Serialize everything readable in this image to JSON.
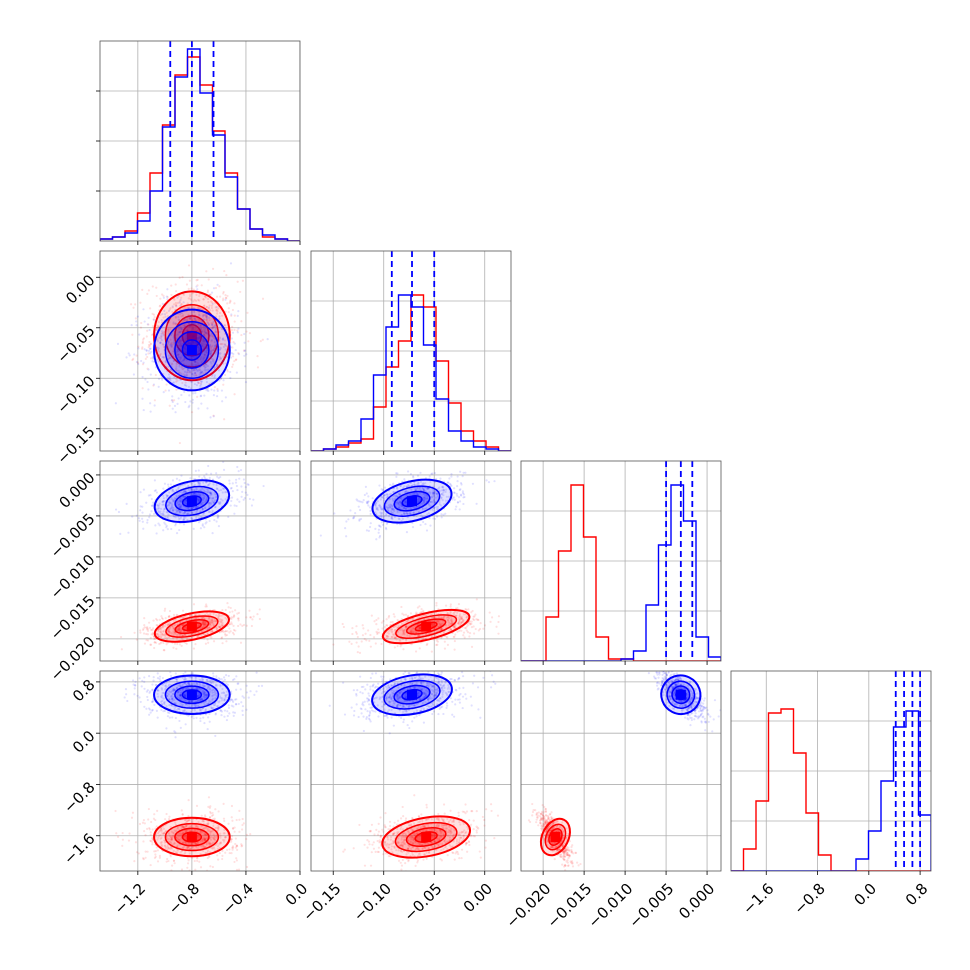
{
  "chart_data": {
    "type": "corner",
    "parameters": [
      {
        "ticks": [
          "−1.2",
          "−0.8",
          "−0.4",
          "0.0"
        ],
        "tick_values": [
          -1.2,
          -0.8,
          -0.4,
          0.0
        ],
        "range": [
          -1.48,
          0.0
        ]
      },
      {
        "ticks": [
          "−0.15",
          "−0.10",
          "−0.05",
          "0.00"
        ],
        "tick_values": [
          -0.15,
          -0.1,
          -0.05,
          0.0
        ],
        "range": [
          -0.172,
          0.026
        ]
      },
      {
        "ticks": [
          "−0.020",
          "−0.015",
          "−0.010",
          "−0.005",
          "0.000"
        ],
        "tick_values": [
          -0.02,
          -0.015,
          -0.01,
          -0.005,
          0.0
        ],
        "range": [
          -0.0227,
          0.0017
        ]
      },
      {
        "ticks": [
          "−1.6",
          "−0.8",
          "0.0",
          "0.8"
        ],
        "tick_values": [
          -1.6,
          -0.8,
          0.0,
          0.8
        ],
        "range": [
          -2.15,
          0.97
        ]
      }
    ],
    "series": [
      {
        "color": "#ff0000",
        "means": [
          -0.8,
          -0.058,
          -0.0185,
          -1.62
        ],
        "stds": [
          0.14,
          0.022,
          0.0008,
          0.15
        ],
        "hist": [
          [
            0.01,
            0.02,
            0.05,
            0.14,
            0.34,
            0.58,
            0.83,
            0.92,
            0.78,
            0.55,
            0.34,
            0.16,
            0.06,
            0.02,
            0.01,
            0.0
          ],
          [
            0.0,
            0.01,
            0.02,
            0.04,
            0.06,
            0.22,
            0.42,
            0.55,
            0.78,
            0.72,
            0.45,
            0.24,
            0.1,
            0.05,
            0.02,
            0.0
          ],
          [
            0.0,
            0.0,
            0.22,
            0.55,
            0.88,
            0.62,
            0.12,
            0.01,
            0.01,
            0.0,
            0.0,
            0.0,
            0.0,
            0.0,
            0.0,
            0.0
          ],
          [
            0.0,
            0.11,
            0.35,
            0.79,
            0.81,
            0.59,
            0.29,
            0.08,
            0.0,
            0.0,
            0.0,
            0.0,
            0.0,
            0.0,
            0.0,
            0.0
          ]
        ]
      },
      {
        "color": "#0000ff",
        "means": [
          -0.8,
          -0.072,
          -0.0032,
          0.6
        ],
        "stds": [
          0.14,
          0.02,
          0.0012,
          0.15
        ],
        "hist": [
          [
            0.01,
            0.02,
            0.04,
            0.1,
            0.25,
            0.57,
            0.82,
            0.96,
            0.74,
            0.53,
            0.32,
            0.16,
            0.06,
            0.03,
            0.01,
            0.0
          ],
          [
            0.0,
            0.01,
            0.03,
            0.05,
            0.16,
            0.38,
            0.62,
            0.78,
            0.72,
            0.53,
            0.26,
            0.1,
            0.05,
            0.02,
            0.01,
            0.0
          ],
          [
            0.0,
            0.0,
            0.0,
            0.0,
            0.0,
            0.0,
            0.0,
            0.0,
            0.01,
            0.05,
            0.28,
            0.58,
            0.88,
            0.7,
            0.12,
            0.02
          ],
          [
            0.0,
            0.0,
            0.0,
            0.0,
            0.0,
            0.0,
            0.0,
            0.0,
            0.0,
            0.0,
            0.06,
            0.2,
            0.45,
            0.72,
            0.8,
            0.28
          ]
        ]
      }
    ],
    "quantile_lines": [
      [
        -0.96,
        -0.8,
        -0.64
      ],
      [
        -0.092,
        -0.072,
        -0.05
      ],
      [
        -0.005,
        -0.0032,
        -0.0018
      ],
      [
        0.42,
        0.55,
        0.68,
        0.8
      ]
    ],
    "quantile_color": "#0000ff",
    "grid": true,
    "legend": "none"
  }
}
